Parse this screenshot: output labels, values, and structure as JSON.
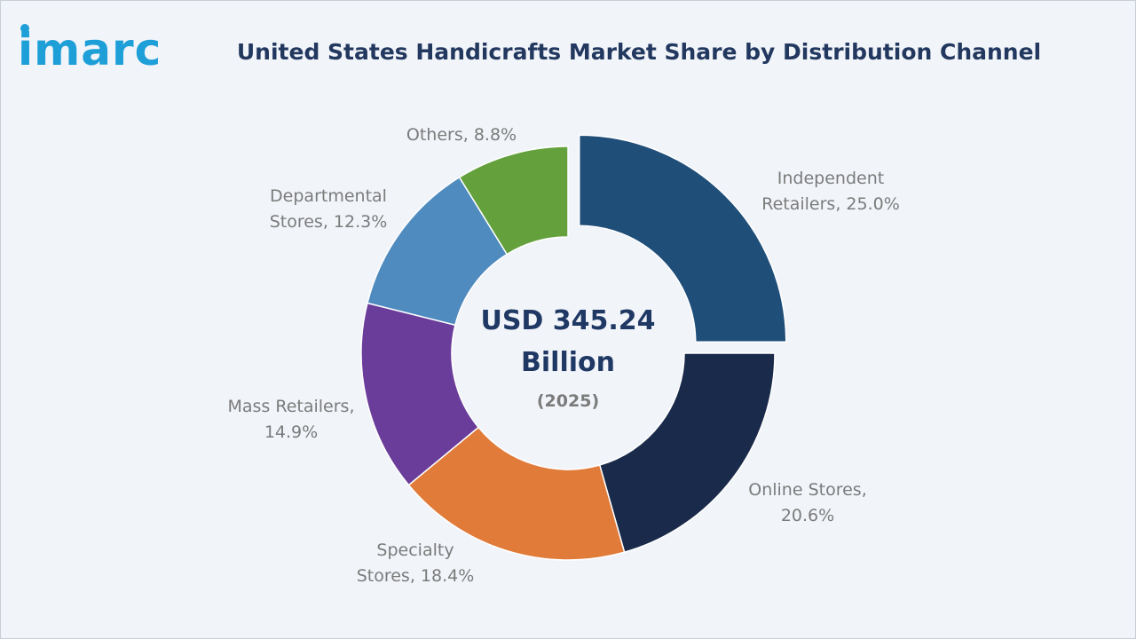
{
  "logo": {
    "text": "imarc"
  },
  "colors": {
    "background": "#f1f4f9",
    "title": "#22385f",
    "logo": "#1e9fd8",
    "label": "#7b7b7b",
    "center_text": "#1f3864"
  },
  "chart_data": {
    "type": "pie",
    "variant": "donut",
    "title": "United States Handicrafts Market Share by Distribution Channel",
    "center_label_line1": "USD 345.24",
    "center_label_line2": "Billion",
    "center_label_year": "(2025)",
    "unit": "%",
    "categories": [
      "Independent Retailers",
      "Online Stores",
      "Specialty Stores",
      "Mass Retailers",
      "Departmental Stores",
      "Others"
    ],
    "values": [
      25.0,
      20.6,
      18.4,
      14.9,
      12.3,
      8.8
    ],
    "slice_colors": [
      "#1f4e79",
      "#1a2a4a",
      "#e07b39",
      "#6a3d9a",
      "#4f8bbf",
      "#64a13d"
    ],
    "labels": [
      {
        "lines": [
          "Independent",
          "Retailers, 25.0%"
        ]
      },
      {
        "lines": [
          "Online Stores,",
          "20.6%"
        ]
      },
      {
        "lines": [
          "Specialty",
          "Stores, 18.4%"
        ]
      },
      {
        "lines": [
          "Mass Retailers,",
          "14.9%"
        ]
      },
      {
        "lines": [
          "Departmental",
          "Stores, 12.3%"
        ]
      },
      {
        "lines": [
          "Others, 8.8%"
        ]
      }
    ],
    "exploded_slice": "Independent Retailers",
    "legend": "none"
  }
}
